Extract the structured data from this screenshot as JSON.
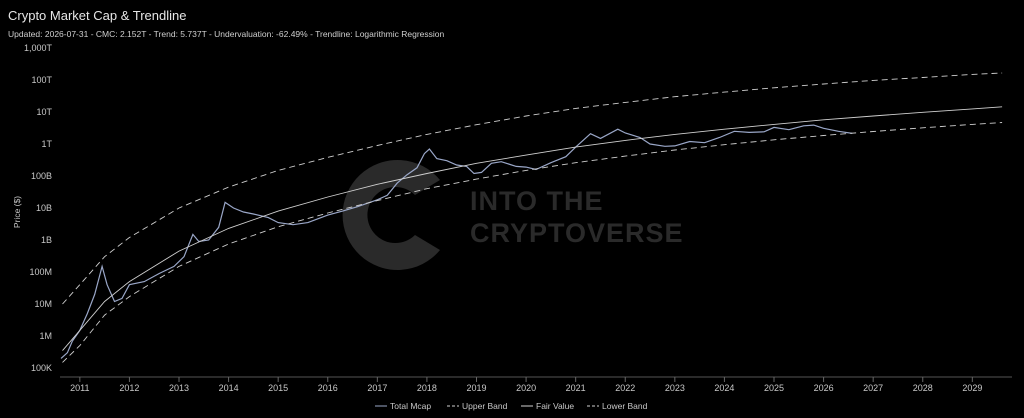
{
  "title": "Crypto Market Cap & Trendline",
  "subtitle": "Updated: 2026-07-31 - CMC: 2.152T - Trend: 5.737T - Undervaluation: -62.49% - Trendline: Logarithmic Regression",
  "watermark": {
    "line1": "INTO THE",
    "line2": "CRYPTOVERSE"
  },
  "chart_data": {
    "type": "line",
    "ylabel": "Price ($)",
    "y_scale": "log",
    "ylim": [
      100000,
      1000000000000000
    ],
    "xlim": [
      2010.6,
      2029.8
    ],
    "y_ticks": [
      {
        "value": 100000,
        "label": "100K"
      },
      {
        "value": 1000000,
        "label": "1M"
      },
      {
        "value": 10000000,
        "label": "10M"
      },
      {
        "value": 100000000,
        "label": "100M"
      },
      {
        "value": 1000000000,
        "label": "1B"
      },
      {
        "value": 10000000000,
        "label": "10B"
      },
      {
        "value": 100000000000,
        "label": "100B"
      },
      {
        "value": 1000000000000,
        "label": "1T"
      },
      {
        "value": 10000000000000,
        "label": "10T"
      },
      {
        "value": 100000000000000,
        "label": "100T"
      },
      {
        "value": 1000000000000000,
        "label": "1,000T"
      }
    ],
    "x_ticks": [
      "2011",
      "2012",
      "2013",
      "2014",
      "2015",
      "2016",
      "2017",
      "2018",
      "2019",
      "2020",
      "2021",
      "2022",
      "2023",
      "2024",
      "2025",
      "2026",
      "2027",
      "2028",
      "2029"
    ],
    "grid": false,
    "legend_position": "bottom",
    "series": [
      {
        "name": "Total Mcap",
        "color": "#9aa7c8",
        "style": "solid",
        "x": [
          2010.62,
          2010.75,
          2010.85,
          2011.0,
          2011.15,
          2011.3,
          2011.45,
          2011.55,
          2011.7,
          2011.85,
          2012.0,
          2012.3,
          2012.6,
          2012.9,
          2013.1,
          2013.28,
          2013.4,
          2013.6,
          2013.8,
          2013.93,
          2014.1,
          2014.3,
          2014.5,
          2014.8,
          2015.0,
          2015.3,
          2015.6,
          2016.0,
          2016.3,
          2016.6,
          2017.0,
          2017.2,
          2017.4,
          2017.6,
          2017.8,
          2017.95,
          2018.05,
          2018.2,
          2018.4,
          2018.6,
          2018.8,
          2018.95,
          2019.1,
          2019.3,
          2019.5,
          2019.8,
          2020.0,
          2020.2,
          2020.5,
          2020.8,
          2021.0,
          2021.3,
          2021.5,
          2021.85,
          2022.0,
          2022.3,
          2022.5,
          2022.8,
          2023.0,
          2023.3,
          2023.6,
          2023.9,
          2024.2,
          2024.5,
          2024.8,
          2025.0,
          2025.3,
          2025.6,
          2025.8,
          2026.0,
          2026.3,
          2026.58
        ],
        "y": [
          200000,
          300000,
          700000,
          1500000,
          5000000,
          20000000,
          150000000,
          40000000,
          12000000,
          15000000,
          40000000,
          50000000,
          90000000,
          150000000,
          300000000,
          1500000000,
          900000000,
          1000000000,
          2500000000,
          15000000000,
          10000000000,
          7500000000,
          6500000000,
          5000000000,
          3500000000,
          3000000000,
          3500000000,
          6000000000,
          8000000000,
          11000000000,
          18000000000,
          25000000000,
          60000000000,
          110000000000,
          180000000000,
          500000000000,
          700000000000,
          350000000000,
          300000000000,
          220000000000,
          200000000000,
          120000000000,
          130000000000,
          250000000000,
          280000000000,
          200000000000,
          190000000000,
          160000000000,
          260000000000,
          400000000000,
          800000000000,
          2100000000000,
          1500000000000,
          2900000000000,
          2200000000000,
          1600000000000,
          1000000000000,
          850000000000,
          870000000000,
          1200000000000,
          1100000000000,
          1600000000000,
          2500000000000,
          2300000000000,
          2400000000000,
          3300000000000,
          2800000000000,
          3700000000000,
          3900000000000,
          3100000000000,
          2500000000000,
          2150000000000
        ]
      },
      {
        "name": "Upper Band",
        "color": "#cfcfcf",
        "style": "dashed",
        "x": [
          2010.65,
          2011.0,
          2011.5,
          2012.0,
          2013.0,
          2014.0,
          2015.0,
          2016.0,
          2017.0,
          2018.0,
          2019.0,
          2020.0,
          2021.0,
          2022.0,
          2023.0,
          2024.0,
          2025.0,
          2026.0,
          2027.0,
          2028.0,
          2029.0,
          2029.6
        ],
        "y": [
          10000000,
          40000000,
          300000000,
          1200000000,
          10000000000,
          45000000000,
          150000000000,
          380000000000,
          900000000000,
          2000000000000,
          4000000000000,
          7500000000000,
          13000000000000,
          20000000000000,
          30000000000000,
          42000000000000,
          57000000000000,
          75000000000000,
          97000000000000,
          120000000000000,
          150000000000000,
          165000000000000
        ]
      },
      {
        "name": "Fair Value",
        "color": "#cfcfcf",
        "style": "solid",
        "x": [
          2010.65,
          2011.0,
          2011.5,
          2012.0,
          2013.0,
          2014.0,
          2015.0,
          2016.0,
          2017.0,
          2018.0,
          2019.0,
          2020.0,
          2021.0,
          2022.0,
          2023.0,
          2024.0,
          2025.0,
          2026.0,
          2027.0,
          2028.0,
          2029.0,
          2029.6
        ],
        "y": [
          350000,
          1500000,
          12000000,
          50000000,
          450000000,
          2300000000,
          8000000000,
          22000000000,
          55000000000,
          120000000000,
          250000000000,
          450000000000,
          800000000000,
          1300000000000,
          2000000000000,
          2900000000000,
          4100000000000,
          5700000000000,
          7500000000000,
          9800000000000,
          12500000000000,
          14500000000000
        ]
      },
      {
        "name": "Lower Band",
        "color": "#cfcfcf",
        "style": "dashed",
        "x": [
          2010.65,
          2011.0,
          2011.5,
          2012.0,
          2013.0,
          2014.0,
          2015.0,
          2016.0,
          2017.0,
          2018.0,
          2019.0,
          2020.0,
          2021.0,
          2022.0,
          2023.0,
          2024.0,
          2025.0,
          2026.0,
          2027.0,
          2028.0,
          2029.0,
          2029.6
        ],
        "y": [
          150000,
          500000,
          4500000,
          17000000,
          150000000,
          750000000,
          2600000000,
          7000000000,
          17000000000,
          40000000000,
          80000000000,
          150000000000,
          260000000000,
          420000000000,
          650000000000,
          950000000000,
          1350000000000,
          1850000000000,
          2450000000000,
          3200000000000,
          4100000000000,
          4700000000000
        ]
      }
    ]
  }
}
